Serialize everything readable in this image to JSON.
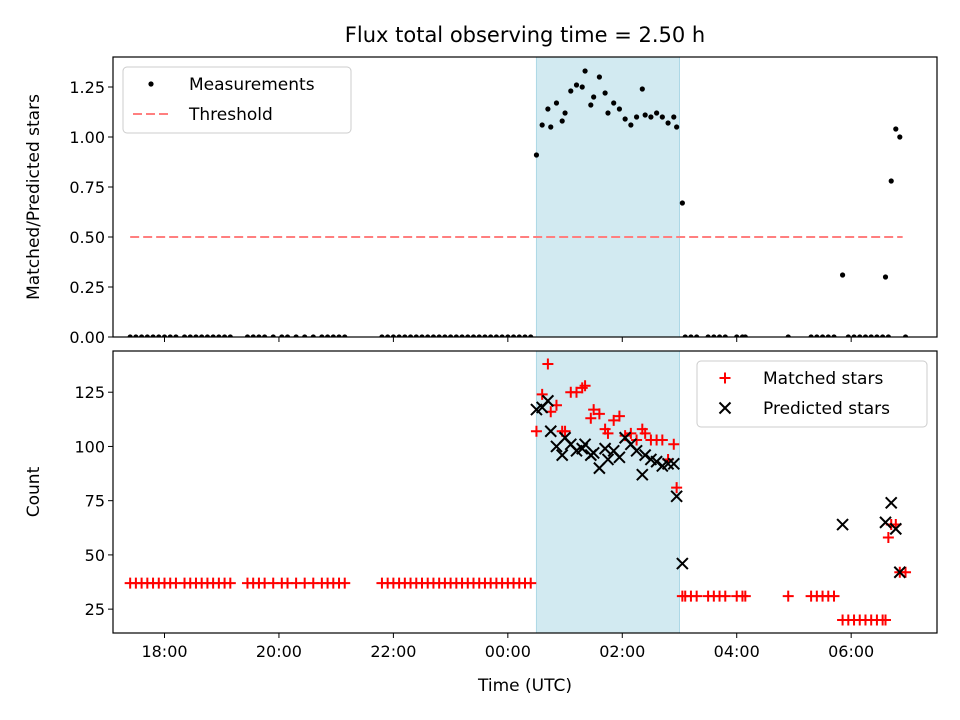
{
  "title": "Flux total observing time = 2.50 h",
  "xlabel": "Time (UTC)",
  "x_ticks": [
    "18:00",
    "20:00",
    "22:00",
    "00:00",
    "02:00",
    "04:00",
    "06:00"
  ],
  "colors": {
    "measurements": "#000000",
    "threshold": "#ff7f7f",
    "matched": "#ff0000",
    "predicted": "#000000",
    "highlight": "#add8e6"
  },
  "chart_data": [
    {
      "type": "scatter",
      "x_unit": "hours since 00:00 UTC",
      "x_range": [
        -6.9,
        7.5
      ],
      "highlight_span": [
        0.5,
        3.0
      ],
      "ylabel": "Matched/Predicted stars",
      "ylim": [
        0,
        1.4
      ],
      "y_ticks": [
        "0.00",
        "0.25",
        "0.50",
        "0.75",
        "1.00",
        "1.25"
      ],
      "legend_position": "top-left",
      "threshold": {
        "name": "Threshold",
        "value": 0.5,
        "x": [
          -6.6,
          6.9
        ]
      },
      "series": [
        {
          "name": "Measurements",
          "marker": "dot",
          "points": [
            [
              -6.6,
              0
            ],
            [
              -6.5,
              0
            ],
            [
              -6.4,
              0
            ],
            [
              -6.3,
              0
            ],
            [
              -6.2,
              0
            ],
            [
              -6.1,
              0
            ],
            [
              -6.0,
              0
            ],
            [
              -5.9,
              0
            ],
            [
              -5.8,
              0
            ],
            [
              -5.65,
              0
            ],
            [
              -5.55,
              0
            ],
            [
              -5.45,
              0
            ],
            [
              -5.35,
              0
            ],
            [
              -5.25,
              0
            ],
            [
              -5.15,
              0
            ],
            [
              -5.05,
              0
            ],
            [
              -4.95,
              0
            ],
            [
              -4.85,
              0
            ],
            [
              -4.55,
              0
            ],
            [
              -4.45,
              0
            ],
            [
              -4.35,
              0
            ],
            [
              -4.25,
              0
            ],
            [
              -4.1,
              0
            ],
            [
              -3.95,
              0
            ],
            [
              -3.85,
              0
            ],
            [
              -3.7,
              0
            ],
            [
              -3.55,
              0
            ],
            [
              -3.4,
              0
            ],
            [
              -3.25,
              0
            ],
            [
              -3.15,
              0
            ],
            [
              -3.05,
              0
            ],
            [
              -2.95,
              0
            ],
            [
              -2.85,
              0
            ],
            [
              -2.2,
              0
            ],
            [
              -2.1,
              0
            ],
            [
              -2.0,
              0
            ],
            [
              -1.9,
              0
            ],
            [
              -1.8,
              0
            ],
            [
              -1.7,
              0
            ],
            [
              -1.6,
              0
            ],
            [
              -1.5,
              0
            ],
            [
              -1.4,
              0
            ],
            [
              -1.3,
              0
            ],
            [
              -1.2,
              0
            ],
            [
              -1.1,
              0
            ],
            [
              -1.0,
              0
            ],
            [
              -0.9,
              0
            ],
            [
              -0.8,
              0
            ],
            [
              -0.7,
              0
            ],
            [
              -0.6,
              0
            ],
            [
              -0.5,
              0
            ],
            [
              -0.4,
              0
            ],
            [
              -0.3,
              0
            ],
            [
              -0.2,
              0
            ],
            [
              -0.1,
              0
            ],
            [
              0.0,
              0
            ],
            [
              0.1,
              0
            ],
            [
              0.2,
              0
            ],
            [
              0.3,
              0
            ],
            [
              0.4,
              0
            ],
            [
              0.5,
              0.91
            ],
            [
              0.6,
              1.06
            ],
            [
              0.7,
              1.14
            ],
            [
              0.75,
              1.05
            ],
            [
              0.85,
              1.17
            ],
            [
              0.95,
              1.08
            ],
            [
              1.0,
              1.12
            ],
            [
              1.1,
              1.23
            ],
            [
              1.2,
              1.26
            ],
            [
              1.3,
              1.25
            ],
            [
              1.35,
              1.33
            ],
            [
              1.45,
              1.16
            ],
            [
              1.5,
              1.2
            ],
            [
              1.6,
              1.3
            ],
            [
              1.7,
              1.22
            ],
            [
              1.75,
              1.12
            ],
            [
              1.85,
              1.17
            ],
            [
              1.95,
              1.14
            ],
            [
              2.05,
              1.09
            ],
            [
              2.15,
              1.06
            ],
            [
              2.25,
              1.1
            ],
            [
              2.35,
              1.24
            ],
            [
              2.4,
              1.11
            ],
            [
              2.5,
              1.1
            ],
            [
              2.6,
              1.12
            ],
            [
              2.7,
              1.1
            ],
            [
              2.8,
              1.07
            ],
            [
              2.9,
              1.1
            ],
            [
              2.95,
              1.05
            ],
            [
              3.05,
              0.67
            ],
            [
              3.1,
              0
            ],
            [
              3.2,
              0
            ],
            [
              3.3,
              0
            ],
            [
              3.5,
              0
            ],
            [
              3.6,
              0
            ],
            [
              3.7,
              0
            ],
            [
              3.8,
              0
            ],
            [
              4.0,
              0
            ],
            [
              4.1,
              0
            ],
            [
              4.15,
              0
            ],
            [
              4.9,
              0
            ],
            [
              5.3,
              0
            ],
            [
              5.4,
              0
            ],
            [
              5.5,
              0
            ],
            [
              5.6,
              0
            ],
            [
              5.7,
              0
            ],
            [
              5.85,
              0.31
            ],
            [
              5.95,
              0
            ],
            [
              6.05,
              0
            ],
            [
              6.15,
              0
            ],
            [
              6.25,
              0
            ],
            [
              6.35,
              0
            ],
            [
              6.45,
              0
            ],
            [
              6.55,
              0
            ],
            [
              6.6,
              0.3
            ],
            [
              6.65,
              0
            ],
            [
              6.7,
              0.78
            ],
            [
              6.78,
              1.04
            ],
            [
              6.85,
              1.0
            ],
            [
              6.95,
              0
            ]
          ]
        }
      ]
    },
    {
      "type": "scatter",
      "x_unit": "hours since 00:00 UTC",
      "x_range": [
        -6.9,
        7.5
      ],
      "highlight_span": [
        0.5,
        3.0
      ],
      "ylabel": "Count",
      "ylim": [
        14,
        144
      ],
      "y_ticks": [
        "25",
        "50",
        "75",
        "100",
        "125"
      ],
      "legend_position": "top-right",
      "series": [
        {
          "name": "Matched stars",
          "marker": "plus",
          "points": [
            [
              -6.6,
              37
            ],
            [
              -6.5,
              37
            ],
            [
              -6.4,
              37
            ],
            [
              -6.3,
              37
            ],
            [
              -6.2,
              37
            ],
            [
              -6.1,
              37
            ],
            [
              -6.0,
              37
            ],
            [
              -5.9,
              37
            ],
            [
              -5.8,
              37
            ],
            [
              -5.65,
              37
            ],
            [
              -5.55,
              37
            ],
            [
              -5.45,
              37
            ],
            [
              -5.35,
              37
            ],
            [
              -5.25,
              37
            ],
            [
              -5.15,
              37
            ],
            [
              -5.05,
              37
            ],
            [
              -4.95,
              37
            ],
            [
              -4.85,
              37
            ],
            [
              -4.55,
              37
            ],
            [
              -4.45,
              37
            ],
            [
              -4.35,
              37
            ],
            [
              -4.25,
              37
            ],
            [
              -4.1,
              37
            ],
            [
              -3.95,
              37
            ],
            [
              -3.85,
              37
            ],
            [
              -3.7,
              37
            ],
            [
              -3.55,
              37
            ],
            [
              -3.4,
              37
            ],
            [
              -3.25,
              37
            ],
            [
              -3.15,
              37
            ],
            [
              -3.05,
              37
            ],
            [
              -2.95,
              37
            ],
            [
              -2.85,
              37
            ],
            [
              -2.2,
              37
            ],
            [
              -2.1,
              37
            ],
            [
              -2.0,
              37
            ],
            [
              -1.9,
              37
            ],
            [
              -1.8,
              37
            ],
            [
              -1.7,
              37
            ],
            [
              -1.6,
              37
            ],
            [
              -1.5,
              37
            ],
            [
              -1.4,
              37
            ],
            [
              -1.3,
              37
            ],
            [
              -1.2,
              37
            ],
            [
              -1.1,
              37
            ],
            [
              -1.0,
              37
            ],
            [
              -0.9,
              37
            ],
            [
              -0.8,
              37
            ],
            [
              -0.7,
              37
            ],
            [
              -0.6,
              37
            ],
            [
              -0.5,
              37
            ],
            [
              -0.4,
              37
            ],
            [
              -0.3,
              37
            ],
            [
              -0.2,
              37
            ],
            [
              -0.1,
              37
            ],
            [
              0.0,
              37
            ],
            [
              0.1,
              37
            ],
            [
              0.2,
              37
            ],
            [
              0.3,
              37
            ],
            [
              0.4,
              37
            ],
            [
              0.5,
              107
            ],
            [
              0.6,
              124
            ],
            [
              0.7,
              138
            ],
            [
              0.75,
              116
            ],
            [
              0.85,
              119
            ],
            [
              0.95,
              107
            ],
            [
              1.0,
              107
            ],
            [
              1.1,
              125
            ],
            [
              1.2,
              125
            ],
            [
              1.3,
              127
            ],
            [
              1.35,
              128
            ],
            [
              1.45,
              113
            ],
            [
              1.5,
              117
            ],
            [
              1.6,
              115
            ],
            [
              1.7,
              108
            ],
            [
              1.75,
              106
            ],
            [
              1.85,
              112
            ],
            [
              1.95,
              114
            ],
            [
              2.05,
              105
            ],
            [
              2.15,
              106
            ],
            [
              2.25,
              103
            ],
            [
              2.35,
              108
            ],
            [
              2.4,
              106
            ],
            [
              2.5,
              103
            ],
            [
              2.6,
              103
            ],
            [
              2.7,
              103
            ],
            [
              2.8,
              94
            ],
            [
              2.9,
              101
            ],
            [
              2.95,
              81
            ],
            [
              3.05,
              31
            ],
            [
              3.1,
              31
            ],
            [
              3.2,
              31
            ],
            [
              3.3,
              31
            ],
            [
              3.5,
              31
            ],
            [
              3.6,
              31
            ],
            [
              3.7,
              31
            ],
            [
              3.8,
              31
            ],
            [
              4.0,
              31
            ],
            [
              4.1,
              31
            ],
            [
              4.15,
              31
            ],
            [
              4.9,
              31
            ],
            [
              5.3,
              31
            ],
            [
              5.4,
              31
            ],
            [
              5.5,
              31
            ],
            [
              5.6,
              31
            ],
            [
              5.7,
              31
            ],
            [
              5.85,
              20
            ],
            [
              5.95,
              20
            ],
            [
              6.05,
              20
            ],
            [
              6.15,
              20
            ],
            [
              6.25,
              20
            ],
            [
              6.35,
              20
            ],
            [
              6.45,
              20
            ],
            [
              6.55,
              20
            ],
            [
              6.6,
              20
            ],
            [
              6.65,
              58
            ],
            [
              6.7,
              64
            ],
            [
              6.78,
              64
            ],
            [
              6.85,
              42
            ],
            [
              6.95,
              42
            ]
          ]
        },
        {
          "name": "Predicted stars",
          "marker": "cross",
          "points": [
            [
              0.5,
              117
            ],
            [
              0.6,
              118
            ],
            [
              0.7,
              121
            ],
            [
              0.75,
              107
            ],
            [
              0.85,
              100
            ],
            [
              0.95,
              96
            ],
            [
              1.0,
              104
            ],
            [
              1.1,
              101
            ],
            [
              1.2,
              98
            ],
            [
              1.3,
              99
            ],
            [
              1.35,
              101
            ],
            [
              1.45,
              96
            ],
            [
              1.5,
              97
            ],
            [
              1.6,
              90
            ],
            [
              1.7,
              99
            ],
            [
              1.75,
              94
            ],
            [
              1.85,
              98
            ],
            [
              1.95,
              95
            ],
            [
              2.05,
              104
            ],
            [
              2.15,
              101
            ],
            [
              2.25,
              98
            ],
            [
              2.35,
              87
            ],
            [
              2.4,
              96
            ],
            [
              2.5,
              94
            ],
            [
              2.6,
              93
            ],
            [
              2.7,
              91
            ],
            [
              2.8,
              92
            ],
            [
              2.9,
              92
            ],
            [
              2.95,
              77
            ],
            [
              3.05,
              46
            ],
            [
              5.85,
              64
            ],
            [
              6.6,
              65
            ],
            [
              6.7,
              74
            ],
            [
              6.78,
              62
            ],
            [
              6.85,
              42
            ]
          ]
        }
      ]
    }
  ]
}
